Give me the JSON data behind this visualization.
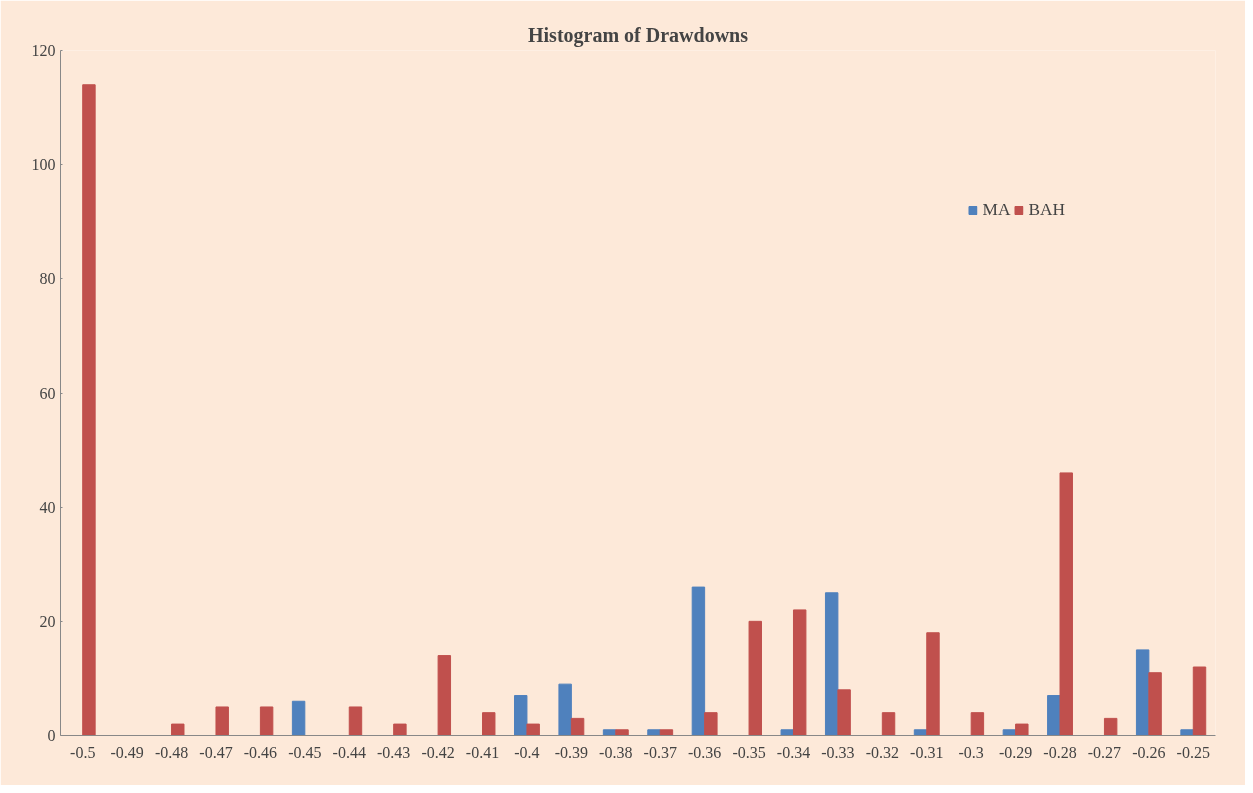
{
  "chart_data": {
    "type": "bar",
    "title": "Histogram of Drawdowns",
    "categories": [
      "-0.5",
      "-0.49",
      "-0.48",
      "-0.47",
      "-0.46",
      "-0.45",
      "-0.44",
      "-0.43",
      "-0.42",
      "-0.41",
      "-0.4",
      "-0.39",
      "-0.38",
      "-0.37",
      "-0.36",
      "-0.35",
      "-0.34",
      "-0.33",
      "-0.32",
      "-0.31",
      "-0.3",
      "-0.29",
      "-0.28",
      "-0.27",
      "-0.26",
      "-0.25"
    ],
    "series": [
      {
        "name": "MA",
        "color": "#4f81bd",
        "values": [
          0,
          0,
          0,
          0,
          0,
          6,
          0,
          0,
          0,
          0,
          7,
          9,
          1,
          1,
          26,
          0,
          1,
          25,
          0,
          1,
          0,
          1,
          7,
          0,
          15,
          1
        ]
      },
      {
        "name": "BAH",
        "color": "#c0504d",
        "values": [
          114,
          0,
          2,
          5,
          5,
          0,
          5,
          2,
          14,
          4,
          2,
          3,
          1,
          1,
          4,
          20,
          22,
          8,
          4,
          18,
          4,
          2,
          46,
          3,
          11,
          12
        ]
      }
    ],
    "ylim": [
      0,
      120
    ],
    "yticks": [
      0,
      20,
      40,
      60,
      80,
      100,
      120
    ],
    "grid": false,
    "legend": "top right"
  }
}
